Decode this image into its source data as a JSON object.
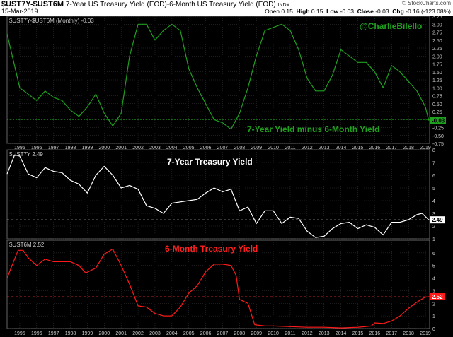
{
  "header": {
    "symbol": "$UST7Y-$UST6M",
    "description": "7-Year US Treasury Yield (EOD)-6-Month US Treasury Yield (EOD)",
    "index_tag": "INDX",
    "date": "15-Mar-2019",
    "credit": "© StockCharts.com",
    "ohlc": [
      {
        "label": "Open",
        "value": "0.15"
      },
      {
        "label": "High",
        "value": "0.15"
      },
      {
        "label": "Low",
        "value": "-0.03"
      },
      {
        "label": "Close",
        "value": "-0.03"
      },
      {
        "label": "Chg",
        "value": "-0.16 (-123.08%)"
      }
    ]
  },
  "colors": {
    "spread": "#1fa01f",
    "seven_year": "#ffffff",
    "six_month": "#ff1a1a",
    "grid": "#3a3a3a",
    "refline": "#ff3030"
  },
  "x_axis_years": [
    "1995",
    "1996",
    "1997",
    "1998",
    "1999",
    "2000",
    "2001",
    "2002",
    "2003",
    "2004",
    "2005",
    "2006",
    "2007",
    "2008",
    "2009",
    "2010",
    "2011",
    "2012",
    "2013",
    "2014",
    "2015",
    "2016",
    "2017",
    "2018",
    "2019"
  ],
  "chart_data": [
    {
      "type": "line",
      "legend": "$UST7Y-$UST6M (Monthly) -0.03",
      "handle": "@CharlieBilello",
      "annotation": "7-Year Yield minus 6-Month Yield",
      "last_value_label": "-0.03",
      "reference_line": 0,
      "ylim": [
        -0.75,
        3.25
      ],
      "y_ticks": [
        "-0.75",
        "-0.50",
        "-0.25",
        "0.00",
        "0.25",
        "0.50",
        "0.75",
        "1.00",
        "1.25",
        "1.50",
        "1.75",
        "2.00",
        "2.25",
        "2.50",
        "2.75",
        "3.00",
        "3.25"
      ],
      "x": [
        1994.25,
        1995.0,
        1995.5,
        1996.0,
        1996.5,
        1997.0,
        1997.5,
        1998.0,
        1998.5,
        1999.0,
        1999.5,
        2000.0,
        2000.5,
        2001.0,
        2001.5,
        2002.0,
        2002.5,
        2003.0,
        2003.5,
        2004.0,
        2004.5,
        2005.0,
        2005.5,
        2006.0,
        2006.5,
        2007.0,
        2007.5,
        2008.0,
        2008.5,
        2009.0,
        2009.5,
        2010.0,
        2010.5,
        2011.0,
        2011.5,
        2012.0,
        2012.5,
        2013.0,
        2013.5,
        2014.0,
        2014.5,
        2015.0,
        2015.5,
        2016.0,
        2016.5,
        2017.0,
        2017.5,
        2018.0,
        2018.5,
        2019.0,
        2019.2
      ],
      "y": [
        2.7,
        1.0,
        0.8,
        0.6,
        0.9,
        0.7,
        0.6,
        0.3,
        0.1,
        0.4,
        0.8,
        0.2,
        -0.2,
        0.2,
        2.0,
        3.0,
        3.0,
        2.5,
        2.8,
        3.0,
        2.8,
        1.6,
        1.0,
        0.5,
        0.0,
        -0.1,
        -0.3,
        0.2,
        1.0,
        2.0,
        2.8,
        2.9,
        3.0,
        2.8,
        2.2,
        1.3,
        0.9,
        0.9,
        1.4,
        2.2,
        2.0,
        1.8,
        1.8,
        1.5,
        1.0,
        1.7,
        1.5,
        1.2,
        0.9,
        0.4,
        -0.03
      ]
    },
    {
      "type": "line",
      "legend": "$UST7Y 2.49",
      "annotation": "7-Year Treasury Yield",
      "last_value_label": "2.49",
      "reference_line": 2.49,
      "ylim": [
        1,
        8
      ],
      "y_ticks": [
        "1",
        "2",
        "3",
        "4",
        "5",
        "6",
        "7",
        "8"
      ],
      "x": [
        1994.25,
        1994.7,
        1995.0,
        1995.5,
        1996.0,
        1996.5,
        1997.0,
        1997.5,
        1998.0,
        1998.5,
        1999.0,
        1999.5,
        2000.0,
        2000.5,
        2001.0,
        2001.5,
        2002.0,
        2002.5,
        2003.0,
        2003.5,
        2004.0,
        2004.5,
        2005.0,
        2005.5,
        2006.0,
        2006.5,
        2007.0,
        2007.5,
        2008.0,
        2008.5,
        2009.0,
        2009.5,
        2010.0,
        2010.5,
        2011.0,
        2011.5,
        2012.0,
        2012.5,
        2013.0,
        2013.5,
        2014.0,
        2014.5,
        2015.0,
        2015.5,
        2016.0,
        2016.5,
        2017.0,
        2017.5,
        2018.0,
        2018.5,
        2018.8,
        2019.2
      ],
      "y": [
        6.1,
        7.6,
        7.5,
        6.1,
        5.8,
        6.6,
        6.3,
        6.2,
        5.6,
        5.3,
        4.6,
        6.0,
        6.7,
        6.0,
        5.0,
        5.2,
        4.9,
        3.6,
        3.4,
        3.0,
        3.8,
        3.9,
        4.0,
        4.1,
        4.6,
        5.0,
        4.7,
        4.9,
        3.2,
        3.5,
        2.2,
        3.2,
        3.2,
        2.2,
        2.7,
        2.6,
        1.6,
        1.1,
        1.2,
        1.8,
        2.2,
        2.3,
        1.8,
        2.1,
        1.9,
        1.3,
        2.3,
        2.3,
        2.5,
        2.9,
        3.0,
        2.49
      ]
    },
    {
      "type": "line",
      "legend": "$UST6M 2.52",
      "annotation": "6-Month Treasury Yield",
      "last_value_label": "2.52",
      "reference_line": 2.52,
      "ylim": [
        0,
        7
      ],
      "y_ticks": [
        "0",
        "1",
        "2",
        "3",
        "4",
        "5",
        "6"
      ],
      "x": [
        1994.25,
        1994.9,
        1995.2,
        1995.5,
        1996.0,
        1996.5,
        1997.0,
        1998.0,
        1998.5,
        1998.9,
        1999.5,
        2000.0,
        2000.5,
        2001.0,
        2001.5,
        2002.0,
        2002.5,
        2003.0,
        2003.5,
        2004.0,
        2004.5,
        2005.0,
        2005.5,
        2006.0,
        2006.5,
        2007.0,
        2007.5,
        2007.8,
        2008.0,
        2008.5,
        2008.9,
        2009.5,
        2010.0,
        2011.0,
        2012.0,
        2013.0,
        2014.0,
        2015.0,
        2015.8,
        2016.0,
        2016.5,
        2017.0,
        2017.5,
        2018.0,
        2018.5,
        2019.0,
        2019.2
      ],
      "y": [
        4.0,
        6.2,
        6.2,
        5.6,
        5.0,
        5.5,
        5.3,
        5.3,
        5.0,
        4.4,
        4.8,
        5.9,
        6.3,
        5.0,
        3.5,
        1.8,
        1.7,
        1.2,
        1.0,
        1.0,
        1.7,
        2.8,
        3.4,
        4.5,
        5.1,
        5.1,
        5.0,
        4.2,
        2.3,
        2.0,
        0.3,
        0.2,
        0.2,
        0.15,
        0.1,
        0.1,
        0.05,
        0.1,
        0.2,
        0.45,
        0.4,
        0.6,
        1.0,
        1.6,
        2.1,
        2.5,
        2.52
      ]
    }
  ]
}
